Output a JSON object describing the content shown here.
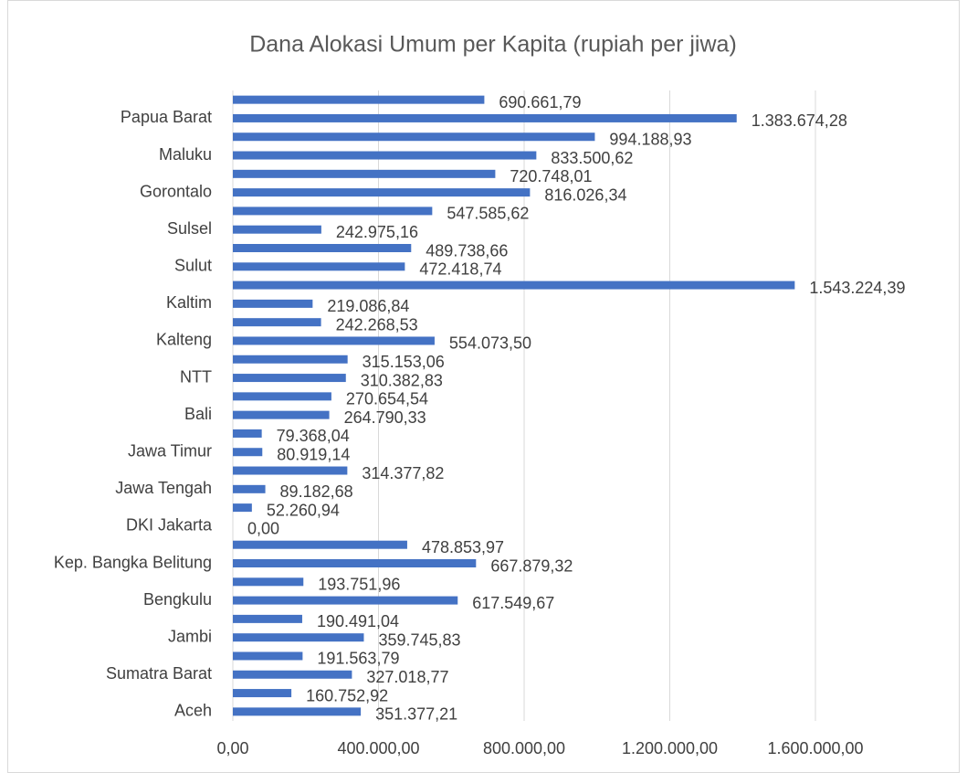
{
  "chart_data": {
    "type": "barh",
    "title": "Dana Alokasi Umum per Kapita (rupiah per jiwa)",
    "categories": [
      "Aceh",
      null,
      "Sumatra Barat",
      null,
      "Jambi",
      null,
      "Bengkulu",
      null,
      "Kep. Bangka Belitung",
      null,
      "DKI Jakarta",
      null,
      "Jawa Tengah",
      null,
      "Jawa Timur",
      null,
      "Bali",
      null,
      "NTT",
      null,
      "Kalteng",
      null,
      "Kaltim",
      null,
      "Sulut",
      null,
      "Sulsel",
      null,
      "Gorontalo",
      null,
      "Maluku",
      null,
      "Papua Barat",
      null
    ],
    "values": [
      351377.21,
      160752.92,
      327018.77,
      191563.79,
      359745.83,
      190491.04,
      617549.67,
      193751.96,
      667879.32,
      478853.97,
      0,
      52260.94,
      89182.68,
      314377.82,
      80919.14,
      79368.04,
      264790.33,
      270654.54,
      310382.83,
      315153.06,
      554073.5,
      242268.53,
      219086.84,
      1543224.39,
      472418.74,
      489738.66,
      242975.16,
      547585.62,
      816026.34,
      720748.01,
      833500.62,
      994188.93,
      1383674.28,
      690661.79
    ],
    "value_labels": [
      "351.377,21",
      "160.752,92",
      "327.018,77",
      "191.563,79",
      "359.745,83",
      "190.491,04",
      "617.549,67",
      "193.751,96",
      "667.879,32",
      "478.853,97",
      "0,00",
      "52.260,94",
      "89.182,68",
      "314.377,82",
      "80.919,14",
      "79.368,04",
      "264.790,33",
      "270.654,54",
      "310.382,83",
      "315.153,06",
      "554.073,50",
      "242.268,53",
      "219.086,84",
      "1.543.224,39",
      "472.418,74",
      "489.738,66",
      "242.975,16",
      "547.585,62",
      "816.026,34",
      "720.748,01",
      "833.500,62",
      "994.188,93",
      "1.383.674,28",
      "690.661,79"
    ],
    "color": "#4472c4",
    "xlim": [
      0,
      1600000
    ],
    "xticks": [
      {
        "value": 0,
        "label": "0,00"
      },
      {
        "value": 400000,
        "label": "400.000,00"
      },
      {
        "value": 800000,
        "label": "800.000,00"
      },
      {
        "value": 1200000,
        "label": "1.200.000,00"
      },
      {
        "value": 1600000,
        "label": "1.600.000,00"
      }
    ],
    "grid": true
  }
}
